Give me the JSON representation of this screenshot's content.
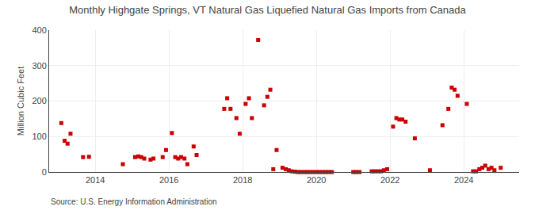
{
  "chart_data": {
    "type": "scatter",
    "title": "Monthly Highgate Springs, VT Natural Gas Liquefied Natural Gas Imports from Canada",
    "ylabel": "Million Cubic Feet",
    "source": "Source: U.S. Energy Information Administration",
    "color": "#cc0000",
    "marker": "square",
    "grid": true,
    "xlim": [
      2012.75,
      2025.5
    ],
    "xticks": [
      2014,
      2016,
      2018,
      2020,
      2022,
      2024
    ],
    "ylim": [
      0,
      400
    ],
    "yticks": [
      0,
      100,
      200,
      300,
      400
    ],
    "x": [
      2013.08,
      2013.17,
      2013.25,
      2013.33,
      2013.67,
      2013.83,
      2014.75,
      2015.08,
      2015.17,
      2015.25,
      2015.33,
      2015.5,
      2015.58,
      2015.83,
      2015.92,
      2016.08,
      2016.17,
      2016.25,
      2016.33,
      2016.42,
      2016.5,
      2016.67,
      2016.75,
      2017.5,
      2017.58,
      2017.67,
      2017.83,
      2017.92,
      2018.08,
      2018.17,
      2018.25,
      2018.42,
      2018.58,
      2018.67,
      2018.75,
      2018.83,
      2018.92,
      2019.08,
      2019.17,
      2019.25,
      2019.33,
      2019.42,
      2019.5,
      2019.58,
      2019.67,
      2019.75,
      2019.83,
      2019.92,
      2020.0,
      2020.08,
      2020.17,
      2020.25,
      2020.33,
      2020.42,
      2021.0,
      2021.08,
      2021.17,
      2021.5,
      2021.58,
      2021.67,
      2021.75,
      2021.83,
      2021.92,
      2022.08,
      2022.17,
      2022.25,
      2022.33,
      2022.42,
      2022.67,
      2023.08,
      2023.42,
      2023.58,
      2023.67,
      2023.75,
      2023.83,
      2024.08,
      2024.25,
      2024.33,
      2024.42,
      2024.5,
      2024.58,
      2024.67,
      2024.75,
      2024.83,
      2025.0
    ],
    "values": [
      138,
      88,
      80,
      108,
      42,
      43,
      22,
      42,
      44,
      42,
      38,
      35,
      38,
      42,
      62,
      110,
      42,
      38,
      42,
      38,
      22,
      72,
      48,
      178,
      208,
      178,
      152,
      108,
      192,
      208,
      152,
      372,
      188,
      212,
      232,
      8,
      62,
      12,
      8,
      5,
      2,
      1,
      0,
      0,
      0,
      0,
      0,
      0,
      0,
      0,
      0,
      0,
      0,
      0,
      0,
      0,
      0,
      2,
      2,
      2,
      2,
      5,
      8,
      128,
      152,
      148,
      148,
      142,
      95,
      5,
      132,
      178,
      238,
      232,
      215,
      192,
      2,
      2,
      8,
      12,
      18,
      8,
      12,
      5,
      12
    ]
  }
}
